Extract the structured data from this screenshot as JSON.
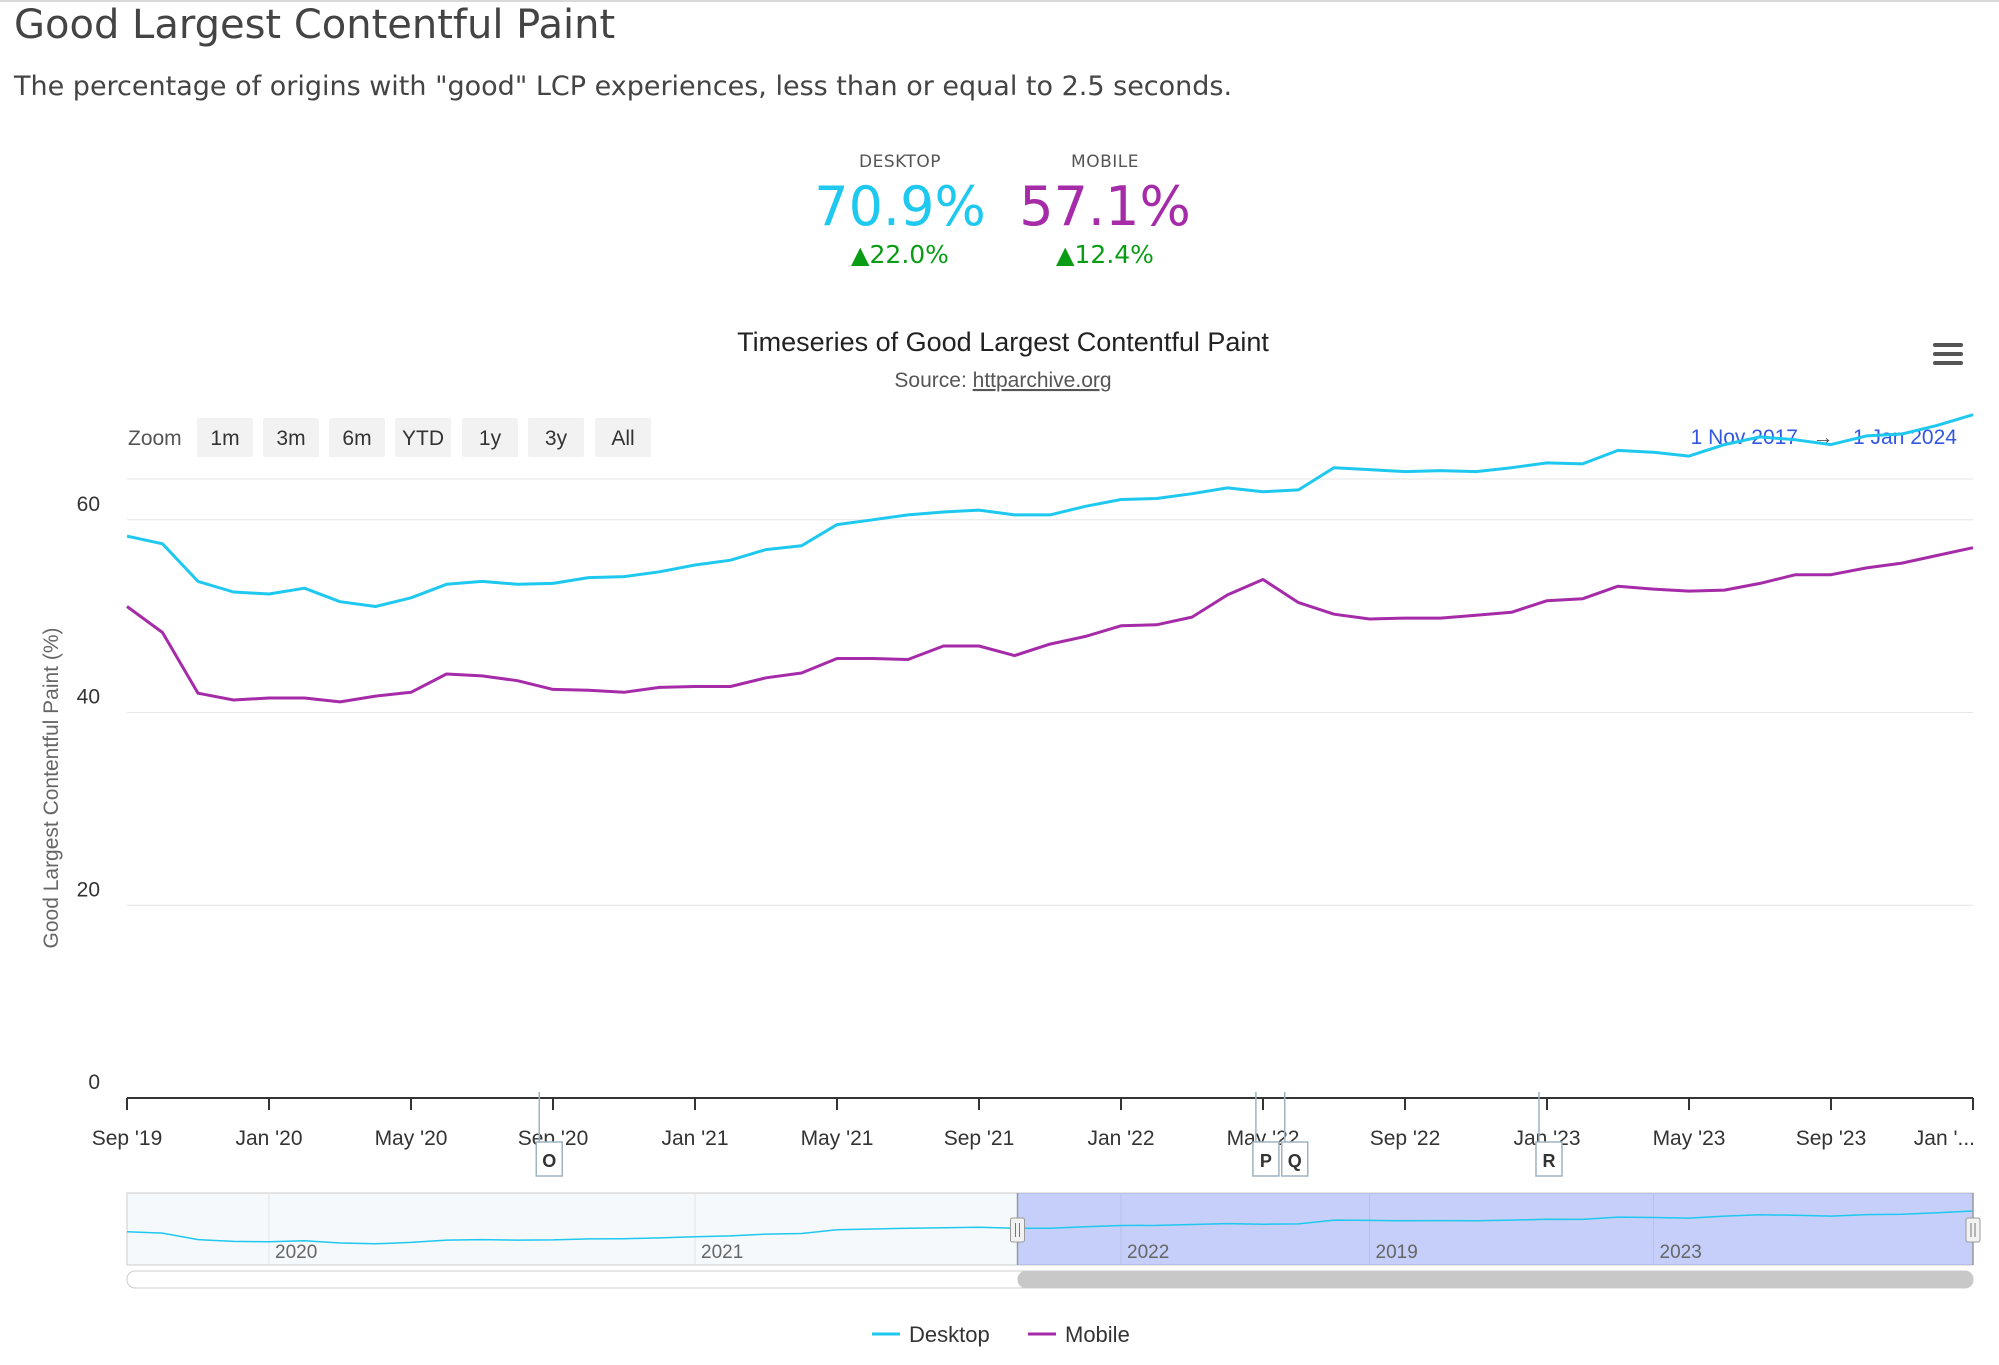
{
  "page": {
    "title": "Good Largest Contentful Paint",
    "subtitle": "The percentage of origins with \"good\" LCP experiences, less than or equal to 2.5 seconds."
  },
  "metrics": [
    {
      "label": "DESKTOP",
      "value": "70.9%",
      "delta": "22.0%",
      "color": "#1ec8ef"
    },
    {
      "label": "MOBILE",
      "value": "57.1%",
      "delta": "12.4%",
      "color": "#a52ba8"
    }
  ],
  "colors": {
    "desktop": "#1ec8ef",
    "mobile": "#a52ba8",
    "link": "#3357e0",
    "delta": "#0a9c15"
  },
  "zoom": {
    "label": "Zoom",
    "buttons": [
      "1m",
      "3m",
      "6m",
      "YTD",
      "1y",
      "3y",
      "All"
    ]
  },
  "range": {
    "from": "1 Nov 2017",
    "arrow": "→",
    "to": "1 Jan 2024"
  },
  "source_prefix": "Source: ",
  "source_link": "httparchive.org",
  "chart_data": {
    "type": "line",
    "title": "Timeseries of Good Largest Contentful Paint",
    "subtitle": "Source: httparchive.org",
    "ylabel": "Good Largest Contentful Paint (%)",
    "ylim": [
      0,
      80
    ],
    "yticks": [
      0,
      20,
      40,
      60
    ],
    "xtick_labels": [
      "Sep '19",
      "Jan '20",
      "May '20",
      "Sep '20",
      "Jan '21",
      "May '21",
      "Sep '21",
      "Jan '22",
      "May '22",
      "Sep '22",
      "Jan '23",
      "May '23",
      "Sep '23",
      "Jan '..."
    ],
    "x_start": "2019-09",
    "x": [
      "2019-09",
      "2019-10",
      "2019-11",
      "2019-12",
      "2020-01",
      "2020-02",
      "2020-03",
      "2020-04",
      "2020-05",
      "2020-06",
      "2020-07",
      "2020-08",
      "2020-09",
      "2020-10",
      "2020-11",
      "2020-12",
      "2021-01",
      "2021-02",
      "2021-03",
      "2021-04",
      "2021-05",
      "2021-06",
      "2021-07",
      "2021-08",
      "2021-09",
      "2021-10",
      "2021-11",
      "2021-12",
      "2022-01",
      "2022-02",
      "2022-03",
      "2022-04",
      "2022-05",
      "2022-06",
      "2022-07",
      "2022-08",
      "2022-09",
      "2022-10",
      "2022-11",
      "2022-12",
      "2023-01",
      "2023-02",
      "2023-03",
      "2023-04",
      "2023-05",
      "2023-06",
      "2023-07",
      "2023-08",
      "2023-09",
      "2023-10",
      "2023-11",
      "2023-12",
      "2024-01"
    ],
    "series": [
      {
        "name": "Desktop",
        "color": "#1ec8ef",
        "values": [
          58.3,
          57.5,
          53.6,
          52.5,
          52.3,
          52.9,
          51.5,
          51.0,
          51.9,
          53.3,
          53.6,
          53.3,
          53.4,
          54.0,
          54.1,
          54.6,
          55.3,
          55.8,
          56.9,
          57.3,
          59.5,
          60.0,
          60.5,
          60.8,
          61.0,
          60.5,
          60.5,
          61.4,
          62.1,
          62.2,
          62.7,
          63.3,
          62.9,
          63.1,
          65.4,
          65.2,
          65.0,
          65.1,
          65.0,
          65.4,
          65.9,
          65.8,
          67.2,
          67.0,
          66.6,
          67.8,
          68.6,
          68.3,
          67.8,
          68.7,
          68.9,
          69.8,
          70.9
        ]
      },
      {
        "name": "Mobile",
        "color": "#a52ba8",
        "values": [
          51.0,
          48.3,
          42.0,
          41.3,
          41.5,
          41.5,
          41.1,
          41.7,
          42.1,
          44.0,
          43.8,
          43.3,
          42.4,
          42.3,
          42.1,
          42.6,
          42.7,
          42.7,
          43.6,
          44.1,
          45.6,
          45.6,
          45.5,
          46.9,
          46.9,
          45.9,
          47.1,
          47.9,
          49.0,
          49.1,
          49.9,
          52.2,
          53.8,
          51.4,
          50.2,
          49.7,
          49.8,
          49.8,
          50.1,
          50.4,
          51.6,
          51.8,
          53.1,
          52.8,
          52.6,
          52.7,
          53.4,
          54.3,
          54.3,
          55.0,
          55.5,
          56.3,
          57.1
        ]
      }
    ],
    "flags": [
      {
        "label": "O",
        "x": "2020-08-20"
      },
      {
        "label": "P",
        "x": "2022-04-25"
      },
      {
        "label": "Q",
        "x": "2022-05-20"
      },
      {
        "label": "R",
        "x": "2022-12-25"
      }
    ],
    "navigator_labels": [
      "2020",
      "2021",
      "2022",
      "2019",
      "2023"
    ],
    "navigator_selection": {
      "from": "2021-10",
      "to": "2024-01"
    },
    "legend": [
      "Desktop",
      "Mobile"
    ],
    "legend_position": "bottom-center",
    "grid": true
  }
}
